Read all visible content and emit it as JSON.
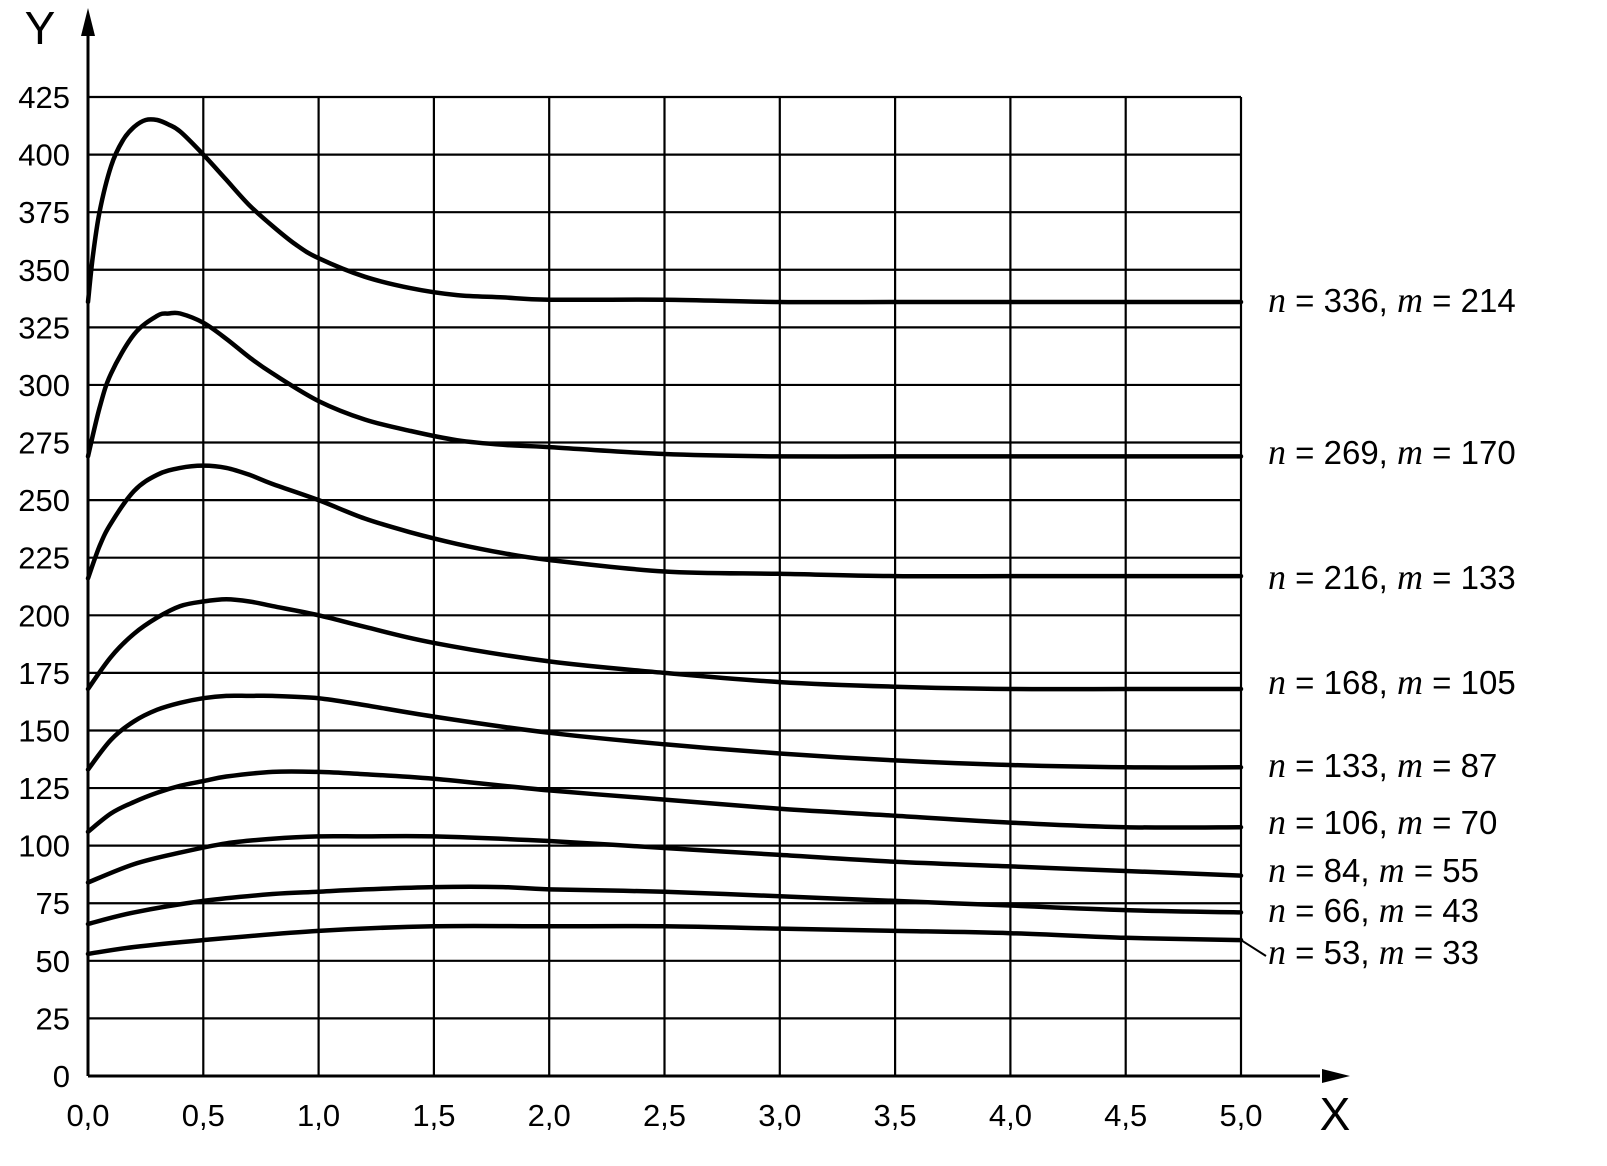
{
  "chart_data": {
    "type": "line",
    "xlabel": "X",
    "ylabel": "Y",
    "xlim": [
      0,
      5
    ],
    "ylim": [
      0,
      425
    ],
    "x_ticks": [
      "0,0",
      "0,5",
      "1,0",
      "1,5",
      "2,0",
      "2,5",
      "3,0",
      "3,5",
      "4,0",
      "4,5",
      "5,0"
    ],
    "y_ticks": [
      "0",
      "25",
      "50",
      "75",
      "100",
      "125",
      "150",
      "175",
      "200",
      "225",
      "250",
      "275",
      "300",
      "325",
      "350",
      "375",
      "400",
      "425"
    ],
    "grid": true,
    "series": [
      {
        "name": "n = 336, m = 214",
        "n": "336",
        "m": "214",
        "x": [
          0.0,
          0.02,
          0.05,
          0.1,
          0.15,
          0.2,
          0.25,
          0.3,
          0.35,
          0.4,
          0.5,
          0.6,
          0.7,
          0.8,
          0.9,
          1.0,
          1.2,
          1.4,
          1.6,
          1.8,
          2.0,
          2.5,
          3.0,
          3.5,
          4.0,
          4.5,
          5.0
        ],
        "y": [
          336,
          355,
          375,
          395,
          406,
          412,
          415,
          415,
          413,
          410,
          400,
          389,
          378,
          369,
          361,
          355,
          347,
          342,
          339,
          338,
          337,
          337,
          336,
          336,
          336,
          336,
          336
        ]
      },
      {
        "name": "n = 269, m = 170",
        "n": "269",
        "m": "170",
        "x": [
          0.0,
          0.05,
          0.1,
          0.2,
          0.3,
          0.35,
          0.4,
          0.5,
          0.6,
          0.7,
          0.8,
          1.0,
          1.2,
          1.4,
          1.6,
          1.8,
          2.0,
          2.5,
          3.0,
          3.5,
          4.0,
          4.5,
          5.0
        ],
        "y": [
          269,
          290,
          305,
          322,
          330,
          331,
          331,
          327,
          320,
          312,
          305,
          293,
          285,
          280,
          276,
          274,
          273,
          270,
          269,
          269,
          269,
          269,
          269
        ]
      },
      {
        "name": "n = 216, m = 133",
        "n": "216",
        "m": "133",
        "x": [
          0.0,
          0.05,
          0.1,
          0.2,
          0.3,
          0.4,
          0.5,
          0.6,
          0.7,
          0.8,
          1.0,
          1.2,
          1.4,
          1.6,
          1.8,
          2.0,
          2.5,
          3.0,
          3.5,
          4.0,
          4.5,
          5.0
        ],
        "y": [
          216,
          230,
          240,
          254,
          261,
          264,
          265,
          264,
          261,
          257,
          250,
          242,
          236,
          231,
          227,
          224,
          219,
          218,
          217,
          217,
          217,
          217
        ]
      },
      {
        "name": "n = 168, m = 105",
        "n": "168",
        "m": "105",
        "x": [
          0.0,
          0.1,
          0.2,
          0.3,
          0.4,
          0.5,
          0.6,
          0.7,
          0.8,
          1.0,
          1.2,
          1.5,
          2.0,
          2.5,
          3.0,
          3.5,
          4.0,
          4.5,
          5.0
        ],
        "y": [
          168,
          182,
          192,
          199,
          204,
          206,
          207,
          206,
          204,
          200,
          195,
          188,
          180,
          175,
          171,
          169,
          168,
          168,
          168
        ]
      },
      {
        "name": "n = 133, m = 87",
        "n": "133",
        "m": "87",
        "x": [
          0.0,
          0.1,
          0.2,
          0.3,
          0.4,
          0.5,
          0.6,
          0.7,
          0.8,
          1.0,
          1.2,
          1.5,
          2.0,
          2.5,
          3.0,
          3.5,
          4.0,
          4.5,
          5.0
        ],
        "y": [
          133,
          146,
          154,
          159,
          162,
          164,
          165,
          165,
          165,
          164,
          161,
          156,
          149,
          144,
          140,
          137,
          135,
          134,
          134
        ]
      },
      {
        "name": "n = 106, m = 70",
        "n": "106",
        "m": "70",
        "x": [
          0.0,
          0.1,
          0.2,
          0.3,
          0.4,
          0.5,
          0.6,
          0.8,
          1.0,
          1.2,
          1.5,
          2.0,
          2.5,
          3.0,
          3.5,
          4.0,
          4.5,
          5.0
        ],
        "y": [
          106,
          114,
          119,
          123,
          126,
          128,
          130,
          132,
          132,
          131,
          129,
          124,
          120,
          116,
          113,
          110,
          108,
          108
        ]
      },
      {
        "name": "n = 84, m = 55",
        "n": "84",
        "m": "55",
        "x": [
          0.0,
          0.2,
          0.4,
          0.6,
          0.8,
          1.0,
          1.2,
          1.5,
          2.0,
          2.5,
          3.0,
          3.5,
          4.0,
          4.5,
          5.0
        ],
        "y": [
          84,
          92,
          97,
          101,
          103,
          104,
          104,
          104,
          102,
          99,
          96,
          93,
          91,
          89,
          87
        ]
      },
      {
        "name": "n = 66, m = 43",
        "n": "66",
        "m": "43",
        "x": [
          0.0,
          0.2,
          0.5,
          0.8,
          1.0,
          1.2,
          1.5,
          1.8,
          2.0,
          2.5,
          3.0,
          3.5,
          4.0,
          4.5,
          5.0
        ],
        "y": [
          66,
          71,
          76,
          79,
          80,
          81,
          82,
          82,
          81,
          80,
          78,
          76,
          74,
          72,
          71
        ]
      },
      {
        "name": "n = 53, m = 33",
        "n": "53",
        "m": "33",
        "x": [
          0.0,
          0.2,
          0.5,
          1.0,
          1.5,
          2.0,
          2.5,
          3.0,
          3.5,
          4.0,
          4.5,
          5.0
        ],
        "y": [
          53,
          56,
          59,
          63,
          65,
          65,
          65,
          64,
          63,
          62,
          60,
          59
        ]
      }
    ]
  }
}
